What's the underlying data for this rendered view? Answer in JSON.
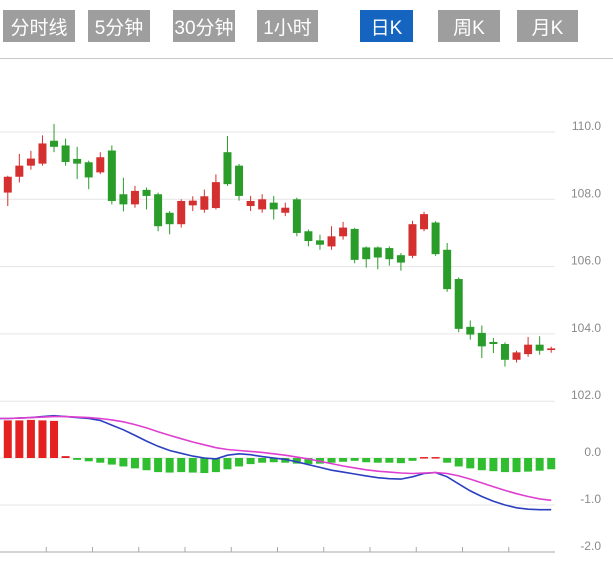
{
  "tabs": {
    "items": [
      {
        "label": "分时线",
        "active": false
      },
      {
        "label": "5分钟",
        "active": false
      },
      {
        "label": "30分钟",
        "active": false
      },
      {
        "label": "1小时",
        "active": false
      },
      {
        "label": "日K",
        "active": true
      },
      {
        "label": "周K",
        "active": false
      },
      {
        "label": "月K",
        "active": false
      }
    ],
    "active_color": "#1565c0",
    "inactive_color": "#9e9e9e",
    "text_color": "#ffffff"
  },
  "chart_data": {
    "type": "candlestick",
    "indicator": "MACD",
    "price_axis": {
      "ticks": [
        110.0,
        108.0,
        106.0,
        104.0,
        102.0
      ],
      "labels": [
        "110.0",
        "108.0",
        "106.0",
        "104.0",
        "102.0"
      ],
      "range": [
        101.5,
        112.2
      ]
    },
    "macd_axis": {
      "ticks": [
        0.0,
        -1.0,
        -2.0
      ],
      "labels": [
        "0.0",
        "-1.0",
        "-2.0"
      ],
      "range": [
        -2.0,
        1.0
      ]
    },
    "x_axis": {
      "tick_count": 11,
      "candles_per_tick": 4,
      "labels_visible": false
    },
    "legend": {
      "visible": false
    },
    "grid": true,
    "candles_ohlc_lh": [
      [
        108.2,
        108.67,
        107.8,
        108.7
      ],
      [
        108.67,
        109.0,
        108.5,
        109.35
      ],
      [
        109.0,
        109.21,
        108.88,
        109.44
      ],
      [
        109.06,
        109.66,
        109.0,
        109.9
      ],
      [
        109.74,
        109.56,
        109.4,
        110.24
      ],
      [
        109.6,
        109.11,
        109.0,
        109.8
      ],
      [
        109.2,
        109.06,
        108.6,
        109.56
      ],
      [
        109.1,
        108.65,
        108.3,
        109.15
      ],
      [
        108.8,
        109.25,
        108.75,
        109.4
      ],
      [
        109.45,
        107.95,
        107.85,
        109.6
      ],
      [
        108.15,
        107.85,
        107.64,
        108.64
      ],
      [
        107.85,
        108.25,
        107.75,
        108.4
      ],
      [
        108.28,
        108.1,
        107.7,
        108.35
      ],
      [
        108.15,
        107.2,
        107.05,
        108.2
      ],
      [
        107.6,
        107.26,
        106.96,
        107.65
      ],
      [
        107.26,
        107.95,
        107.16,
        108.0
      ],
      [
        107.82,
        107.96,
        107.65,
        108.09
      ],
      [
        107.69,
        108.09,
        107.6,
        108.29
      ],
      [
        107.74,
        108.51,
        107.7,
        108.74
      ],
      [
        109.4,
        108.45,
        108.4,
        109.88
      ],
      [
        109.0,
        108.1,
        107.96,
        109.05
      ],
      [
        107.8,
        107.95,
        107.65,
        108.1
      ],
      [
        107.7,
        108.0,
        107.6,
        108.15
      ],
      [
        107.9,
        107.7,
        107.4,
        108.1
      ],
      [
        107.6,
        107.75,
        107.5,
        107.9
      ],
      [
        108.0,
        107.0,
        106.9,
        108.05
      ],
      [
        107.05,
        106.76,
        106.6,
        107.1
      ],
      [
        106.78,
        106.65,
        106.5,
        106.95
      ],
      [
        106.6,
        106.9,
        106.5,
        107.2
      ],
      [
        106.9,
        107.16,
        106.8,
        107.33
      ],
      [
        107.12,
        106.2,
        106.1,
        107.15
      ],
      [
        106.57,
        106.22,
        105.97,
        106.6
      ],
      [
        106.57,
        106.27,
        105.92,
        106.6
      ],
      [
        106.55,
        106.22,
        106.03,
        106.6
      ],
      [
        106.34,
        106.12,
        105.88,
        106.4
      ],
      [
        106.32,
        107.26,
        106.25,
        107.36
      ],
      [
        107.11,
        107.56,
        107.05,
        107.63
      ],
      [
        107.31,
        106.37,
        106.32,
        107.35
      ],
      [
        106.5,
        105.33,
        105.25,
        106.7
      ],
      [
        105.63,
        104.15,
        104.05,
        105.68
      ],
      [
        104.21,
        103.98,
        103.83,
        104.4
      ],
      [
        104.03,
        103.63,
        103.28,
        104.25
      ],
      [
        103.76,
        103.7,
        103.43,
        103.88
      ],
      [
        103.7,
        103.23,
        103.03,
        103.75
      ],
      [
        103.23,
        103.45,
        103.15,
        103.5
      ],
      [
        103.4,
        103.68,
        103.32,
        103.91
      ],
      [
        103.68,
        103.5,
        103.38,
        103.93
      ],
      [
        103.52,
        103.57,
        103.44,
        103.62
      ]
    ],
    "macd": {
      "histogram": [
        0.8,
        0.8,
        0.81,
        0.8,
        0.79,
        0.04,
        -0.04,
        -0.07,
        -0.1,
        -0.14,
        -0.18,
        -0.22,
        -0.26,
        -0.3,
        -0.31,
        -0.3,
        -0.31,
        -0.32,
        -0.3,
        -0.24,
        -0.18,
        -0.13,
        -0.1,
        -0.09,
        -0.1,
        -0.12,
        -0.13,
        -0.12,
        -0.1,
        -0.08,
        -0.06,
        -0.09,
        -0.1,
        -0.1,
        -0.11,
        -0.06,
        0.02,
        0.02,
        -0.1,
        -0.18,
        -0.22,
        -0.26,
        -0.28,
        -0.3,
        -0.3,
        -0.29,
        -0.27,
        -0.24
      ],
      "dif": [
        0.84,
        0.85,
        0.86,
        0.88,
        0.9,
        0.88,
        0.86,
        0.84,
        0.8,
        0.7,
        0.6,
        0.48,
        0.36,
        0.25,
        0.16,
        0.1,
        0.04,
        0.0,
        -0.02,
        0.06,
        0.09,
        0.07,
        0.03,
        0.0,
        -0.03,
        -0.08,
        -0.14,
        -0.2,
        -0.26,
        -0.3,
        -0.34,
        -0.38,
        -0.42,
        -0.44,
        -0.45,
        -0.4,
        -0.33,
        -0.31,
        -0.4,
        -0.55,
        -0.7,
        -0.82,
        -0.92,
        -1.0,
        -1.06,
        -1.09,
        -1.1,
        -1.1
      ],
      "dea": [
        0.84,
        0.85,
        0.86,
        0.87,
        0.88,
        0.88,
        0.87,
        0.86,
        0.84,
        0.81,
        0.77,
        0.71,
        0.64,
        0.56,
        0.48,
        0.41,
        0.34,
        0.28,
        0.22,
        0.18,
        0.16,
        0.14,
        0.12,
        0.09,
        0.06,
        0.02,
        -0.02,
        -0.07,
        -0.12,
        -0.17,
        -0.21,
        -0.25,
        -0.28,
        -0.3,
        -0.32,
        -0.33,
        -0.32,
        -0.31,
        -0.33,
        -0.38,
        -0.45,
        -0.53,
        -0.61,
        -0.69,
        -0.76,
        -0.82,
        -0.87,
        -0.9
      ]
    },
    "colors": {
      "up": "#d43030",
      "down": "#2a9c2a",
      "hist_up": "#e42020",
      "hist_down": "#2fbe2f",
      "dif_line": "#2b3fc0",
      "dea_line": "#df3fd0",
      "grid": "#e6e6e6",
      "axis": "#a9a9a9",
      "label": "#8a8a8a"
    }
  }
}
